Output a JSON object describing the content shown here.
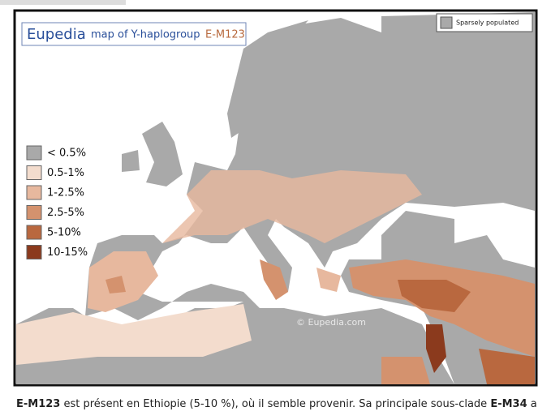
{
  "header": {
    "brand": "Eupedia",
    "title": "map of Y-haplogroup",
    "haplogroup": "E-M123"
  },
  "sparse_label": "Sparsely populated",
  "legend": [
    {
      "label": "< 0.5%",
      "color": "#a9a9a9"
    },
    {
      "label": "0.5-1%",
      "color": "#f3dccd"
    },
    {
      "label": "1-2.5%",
      "color": "#e7b89e"
    },
    {
      "label": "2.5-5%",
      "color": "#d4926e"
    },
    {
      "label": "5-10%",
      "color": "#b9683f"
    },
    {
      "label": "10-15%",
      "color": "#8b3a1d"
    }
  ],
  "watermark": "© Eupedia.com",
  "caption": [
    {
      "text": "E-M123",
      "bold": true
    },
    {
      "text": " est présent en Ethiopie (5-10 %), où il semble provenir. Sa principale sous-clade ",
      "bold": false
    },
    {
      "text": "E-M34",
      "bold": true
    },
    {
      "text": " a",
      "bold": false
    }
  ]
}
